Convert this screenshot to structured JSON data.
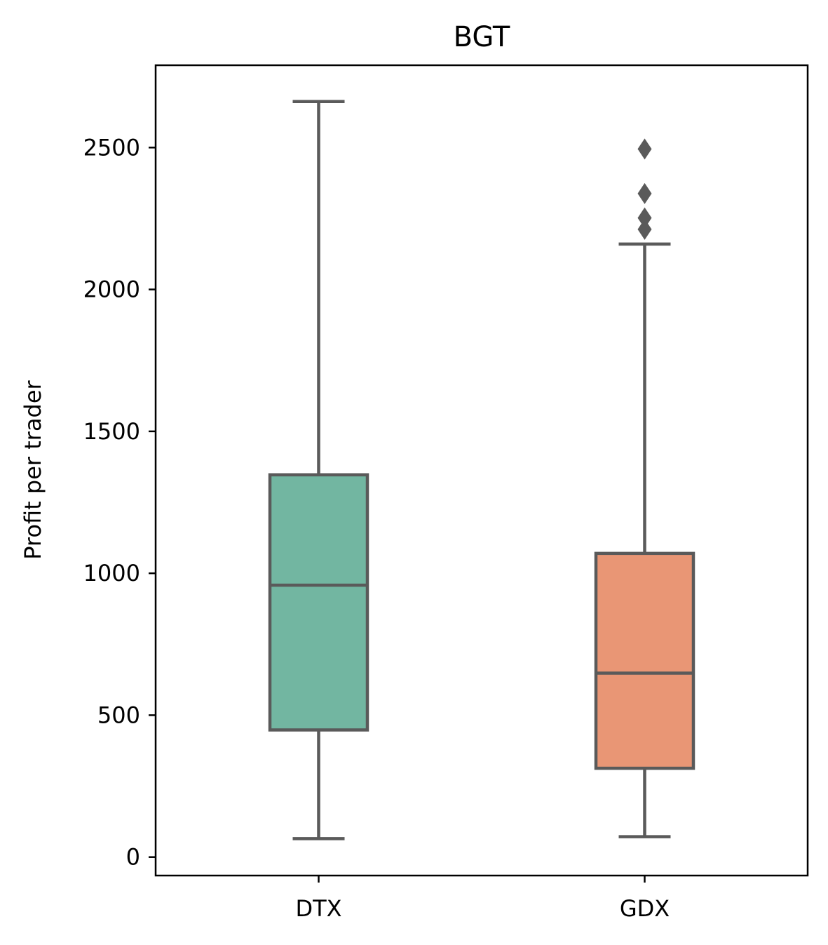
{
  "chart_data": {
    "type": "box",
    "title": "BGT",
    "xlabel": "",
    "ylabel": "Profit per trader",
    "ylim": [
      -65,
      2790
    ],
    "yticks": [
      0,
      500,
      1000,
      1500,
      2000,
      2500
    ],
    "yticklabels": [
      "0",
      "500",
      "1000",
      "1500",
      "2000",
      "2500"
    ],
    "grid": false,
    "categories": [
      "DTX",
      "GDX"
    ],
    "colors": {
      "DTX": "#72b6a1",
      "GDX": "#e99675",
      "line": "#5a5a5a"
    },
    "boxes": [
      {
        "category": "DTX",
        "whisker_low": 65,
        "q1": 448,
        "median": 958,
        "q3": 1347,
        "whisker_high": 2662,
        "outliers": []
      },
      {
        "category": "GDX",
        "whisker_low": 72,
        "q1": 313,
        "median": 648,
        "q3": 1070,
        "whisker_high": 2160,
        "outliers": [
          2212,
          2252,
          2338,
          2495
        ]
      }
    ]
  }
}
